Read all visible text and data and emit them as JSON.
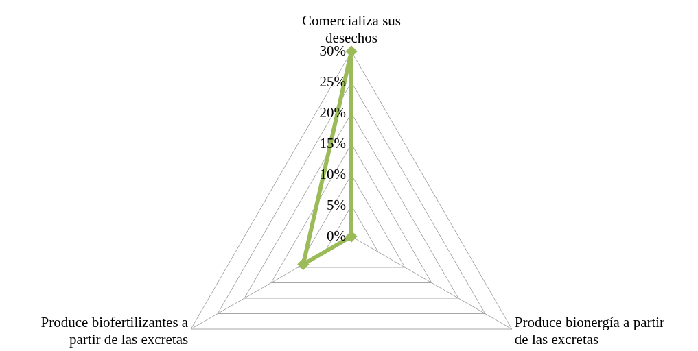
{
  "chart_data": {
    "type": "radar",
    "categories": [
      "Comercializa sus desechos",
      "Produce bionergía a partir de las excretas",
      "Produce biofertilizantes a partir de las excretas"
    ],
    "series": [
      {
        "color": "#9bbb59",
        "values": [
          30,
          0,
          9
        ]
      }
    ],
    "ylim": [
      0,
      30
    ],
    "yticks": [
      {
        "value": 0,
        "label": "0%"
      },
      {
        "value": 5,
        "label": "5%"
      },
      {
        "value": 10,
        "label": "10%"
      },
      {
        "value": 15,
        "label": "15%"
      },
      {
        "value": 20,
        "label": "20%"
      },
      {
        "value": 25,
        "label": "25%"
      },
      {
        "value": 30,
        "label": "30%"
      }
    ],
    "marker": "diamond",
    "line_style": "solid",
    "grid": true
  }
}
